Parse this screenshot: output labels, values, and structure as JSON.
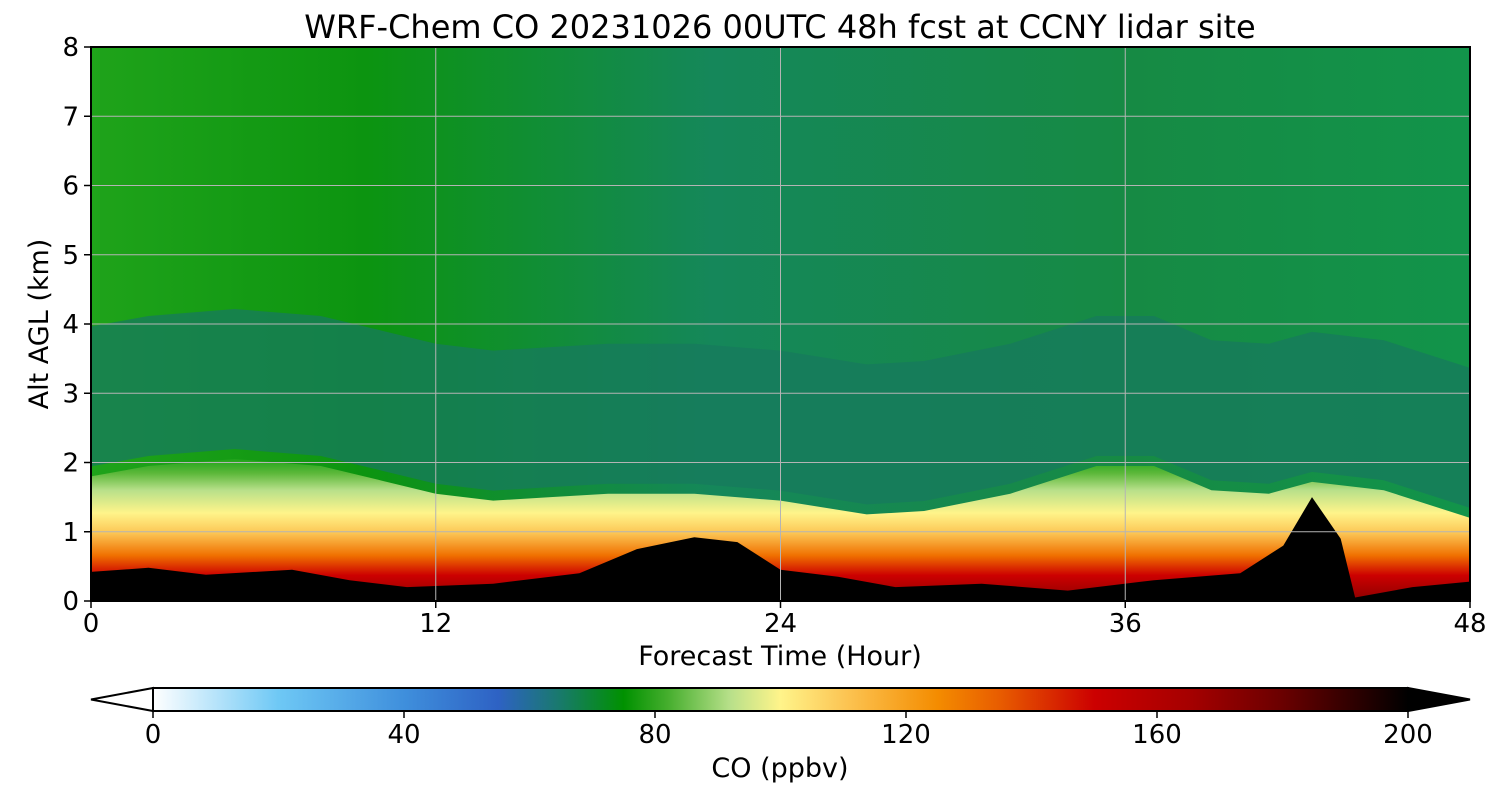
{
  "chart_data": {
    "type": "heatmap",
    "title": "WRF-Chem CO  20231026 00UTC 48h fcst at CCNY lidar site",
    "xlabel": "Forecast Time (Hour)",
    "ylabel": "Alt AGL (km)",
    "xlim": [
      0,
      48
    ],
    "ylim": [
      0,
      8
    ],
    "x_ticks": [
      0,
      12,
      24,
      36,
      48
    ],
    "y_ticks": [
      0,
      1,
      2,
      3,
      4,
      5,
      6,
      7,
      8
    ],
    "grid": true,
    "colorbar": {
      "label": "CO  (ppbv)",
      "range": [
        0,
        200
      ],
      "ticks": [
        0,
        40,
        80,
        120,
        160,
        200
      ],
      "extend": "both",
      "stops": [
        {
          "v": 0,
          "c": "#ffffff"
        },
        {
          "v": 20,
          "c": "#6ec8f5"
        },
        {
          "v": 40,
          "c": "#3f8fdc"
        },
        {
          "v": 55,
          "c": "#2e62c4"
        },
        {
          "v": 65,
          "c": "#187a6a"
        },
        {
          "v": 75,
          "c": "#009100"
        },
        {
          "v": 82,
          "c": "#45ae2d"
        },
        {
          "v": 92,
          "c": "#b8e08a"
        },
        {
          "v": 100,
          "c": "#fff48a"
        },
        {
          "v": 110,
          "c": "#fcc655"
        },
        {
          "v": 125,
          "c": "#f48c00"
        },
        {
          "v": 135,
          "c": "#e85c00"
        },
        {
          "v": 150,
          "c": "#cc0000"
        },
        {
          "v": 165,
          "c": "#a60000"
        },
        {
          "v": 180,
          "c": "#6a0000"
        },
        {
          "v": 200,
          "c": "#000000"
        }
      ]
    },
    "surface_height_km": [
      {
        "x": 0,
        "y": 0.42
      },
      {
        "x": 2,
        "y": 0.48
      },
      {
        "x": 4,
        "y": 0.38
      },
      {
        "x": 7,
        "y": 0.45
      },
      {
        "x": 9,
        "y": 0.3
      },
      {
        "x": 11,
        "y": 0.2
      },
      {
        "x": 14,
        "y": 0.25
      },
      {
        "x": 17,
        "y": 0.4
      },
      {
        "x": 19,
        "y": 0.75
      },
      {
        "x": 21,
        "y": 0.92
      },
      {
        "x": 22.5,
        "y": 0.85
      },
      {
        "x": 24,
        "y": 0.45
      },
      {
        "x": 26,
        "y": 0.35
      },
      {
        "x": 28,
        "y": 0.2
      },
      {
        "x": 31,
        "y": 0.25
      },
      {
        "x": 34,
        "y": 0.15
      },
      {
        "x": 37,
        "y": 0.3
      },
      {
        "x": 40,
        "y": 0.4
      },
      {
        "x": 41.5,
        "y": 0.8
      },
      {
        "x": 42.5,
        "y": 1.5
      },
      {
        "x": 43.5,
        "y": 0.9
      },
      {
        "x": 44,
        "y": 0.05
      },
      {
        "x": 46,
        "y": 0.2
      },
      {
        "x": 48,
        "y": 0.28
      }
    ],
    "boundary_layer_top_km": [
      {
        "x": 0,
        "y": 1.8
      },
      {
        "x": 2,
        "y": 1.95
      },
      {
        "x": 5,
        "y": 2.05
      },
      {
        "x": 8,
        "y": 1.95
      },
      {
        "x": 10,
        "y": 1.75
      },
      {
        "x": 12,
        "y": 1.55
      },
      {
        "x": 14,
        "y": 1.45
      },
      {
        "x": 16,
        "y": 1.5
      },
      {
        "x": 18,
        "y": 1.55
      },
      {
        "x": 21,
        "y": 1.55
      },
      {
        "x": 24,
        "y": 1.45
      },
      {
        "x": 27,
        "y": 1.25
      },
      {
        "x": 29,
        "y": 1.3
      },
      {
        "x": 32,
        "y": 1.55
      },
      {
        "x": 35,
        "y": 1.95
      },
      {
        "x": 37,
        "y": 1.95
      },
      {
        "x": 39,
        "y": 1.6
      },
      {
        "x": 41,
        "y": 1.55
      },
      {
        "x": 42.5,
        "y": 1.72
      },
      {
        "x": 45,
        "y": 1.6
      },
      {
        "x": 48,
        "y": 1.2
      }
    ]
  }
}
